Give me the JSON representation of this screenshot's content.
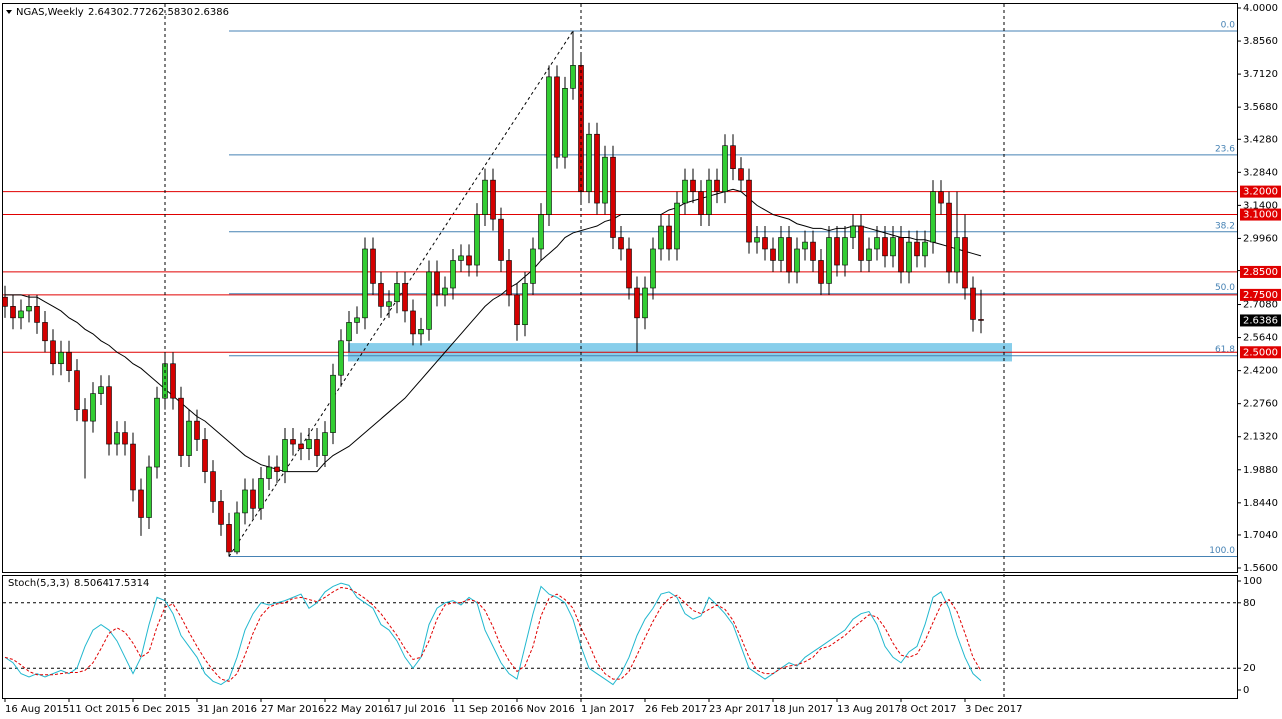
{
  "chart_data": [
    {
      "type": "candlestick",
      "title": "NGAS,Weekly",
      "header_values": [
        "2.6430",
        "2.7726",
        "2.5830",
        "2.6386"
      ],
      "categories": [
        "16 Aug 2015",
        null,
        null,
        null,
        null,
        null,
        null,
        null,
        "11 Oct 2015",
        null,
        null,
        null,
        null,
        null,
        null,
        null,
        "6 Dec 2015",
        null,
        null,
        null,
        null,
        null,
        null,
        null,
        "31 Jan 2016",
        null,
        null,
        null,
        null,
        null,
        null,
        null,
        "27 Mar 2016",
        null,
        null,
        null,
        null,
        null,
        null,
        null,
        "22 May 2016",
        null,
        null,
        null,
        null,
        null,
        null,
        null,
        "17 Jul 2016",
        null,
        null,
        null,
        null,
        null,
        null,
        null,
        "11 Sep 2016",
        null,
        null,
        null,
        null,
        null,
        null,
        null,
        "6 Nov 2016",
        null,
        null,
        null,
        null,
        null,
        null,
        null,
        "1 Jan 2017",
        null,
        null,
        null,
        null,
        null,
        null,
        null,
        "26 Feb 2017",
        null,
        null,
        null,
        null,
        null,
        null,
        null,
        "23 Apr 2017",
        null,
        null,
        null,
        null,
        null,
        null,
        null,
        "18 Jun 2017",
        null,
        null,
        null,
        null,
        null,
        null,
        null,
        "13 Aug 2017",
        null,
        null,
        null,
        null,
        null,
        null,
        null,
        "8 Oct 2017",
        null,
        null,
        null,
        null,
        null,
        null,
        null,
        "3 Dec 2017",
        null,
        null
      ],
      "open": [
        2.74,
        2.7,
        2.65,
        2.68,
        2.7,
        2.63,
        2.55,
        2.45,
        2.5,
        2.42,
        2.25,
        2.2,
        2.32,
        2.35,
        2.1,
        2.15,
        2.1,
        1.9,
        1.78,
        2.0,
        2.3,
        2.45,
        2.3,
        2.05,
        2.2,
        2.12,
        1.98,
        1.85,
        1.75,
        1.63,
        1.8,
        1.9,
        1.82,
        1.95,
        2.0,
        1.98,
        2.12,
        2.1,
        2.08,
        2.12,
        2.05,
        2.15,
        2.4,
        2.55,
        2.63,
        2.65,
        2.95,
        2.8,
        2.7,
        2.72,
        2.8,
        2.68,
        2.58,
        2.6,
        2.85,
        2.75,
        2.78,
        2.9,
        2.92,
        2.88,
        3.1,
        3.25,
        3.08,
        2.9,
        2.75,
        2.62,
        2.8,
        2.95,
        3.1,
        3.7,
        3.35,
        3.65,
        3.75,
        3.2,
        3.45,
        3.15,
        3.35,
        3.0,
        2.95,
        2.78,
        2.65,
        2.78,
        2.95,
        3.05,
        2.95,
        3.15,
        3.25,
        3.2,
        3.1,
        3.25,
        3.2,
        3.4,
        3.3,
        3.25,
        2.98,
        3.0,
        2.95,
        2.9,
        3.0,
        2.85,
        2.95,
        2.98,
        2.9,
        2.8,
        3.0,
        2.88,
        3.0,
        3.05,
        2.9,
        2.95,
        3.0,
        2.92,
        3.0,
        2.85,
        2.98,
        2.92,
        2.98,
        3.2,
        3.15,
        2.85,
        3.0,
        2.78,
        2.643
      ],
      "high": [
        2.79,
        2.75,
        2.73,
        2.75,
        2.75,
        2.68,
        2.6,
        2.55,
        2.55,
        2.47,
        2.3,
        2.37,
        2.4,
        2.4,
        2.2,
        2.2,
        2.15,
        1.95,
        2.05,
        2.35,
        2.5,
        2.5,
        2.35,
        2.25,
        2.25,
        2.17,
        2.03,
        1.9,
        1.8,
        1.85,
        1.95,
        1.95,
        2.0,
        2.05,
        2.05,
        2.17,
        2.17,
        2.15,
        2.17,
        2.17,
        2.2,
        2.45,
        2.6,
        2.68,
        2.7,
        3.0,
        3.0,
        2.85,
        2.77,
        2.85,
        2.85,
        2.73,
        2.65,
        2.9,
        2.9,
        2.83,
        2.95,
        2.97,
        2.97,
        3.15,
        3.3,
        3.3,
        3.13,
        2.95,
        2.8,
        2.85,
        3.0,
        3.15,
        3.75,
        3.75,
        3.7,
        3.9,
        3.8,
        3.5,
        3.5,
        3.4,
        3.4,
        3.05,
        3.0,
        2.83,
        2.83,
        3.0,
        3.1,
        3.1,
        3.2,
        3.3,
        3.3,
        3.25,
        3.3,
        3.3,
        3.45,
        3.45,
        3.35,
        3.3,
        3.05,
        3.05,
        3.0,
        3.05,
        3.05,
        3.0,
        3.03,
        3.03,
        2.95,
        3.05,
        3.05,
        3.05,
        3.1,
        3.1,
        3.0,
        3.05,
        3.05,
        3.05,
        3.05,
        3.03,
        3.03,
        3.03,
        3.25,
        3.25,
        3.2,
        3.2,
        3.1,
        2.83,
        2.7726
      ],
      "low": [
        2.65,
        2.6,
        2.6,
        2.63,
        2.58,
        2.5,
        2.4,
        2.4,
        2.37,
        2.2,
        1.95,
        2.15,
        2.27,
        2.05,
        2.05,
        2.05,
        1.85,
        1.7,
        1.73,
        1.95,
        2.25,
        2.25,
        2.0,
        2.0,
        2.07,
        1.93,
        1.8,
        1.7,
        1.61,
        1.62,
        1.75,
        1.77,
        1.77,
        1.9,
        1.93,
        1.93,
        2.05,
        2.03,
        2.03,
        2.0,
        2.0,
        2.1,
        2.35,
        2.5,
        2.58,
        2.6,
        2.75,
        2.65,
        2.65,
        2.67,
        2.63,
        2.53,
        2.53,
        2.55,
        2.7,
        2.7,
        2.73,
        2.85,
        2.83,
        2.83,
        3.05,
        3.03,
        2.85,
        2.7,
        2.55,
        2.57,
        2.75,
        2.9,
        3.05,
        3.3,
        3.3,
        3.6,
        3.15,
        3.15,
        3.1,
        3.1,
        2.95,
        2.9,
        2.73,
        2.5,
        2.6,
        2.73,
        2.9,
        2.9,
        2.9,
        3.1,
        3.15,
        3.05,
        3.05,
        3.15,
        3.15,
        3.25,
        3.2,
        2.93,
        2.93,
        2.9,
        2.85,
        2.85,
        2.8,
        2.8,
        2.9,
        2.85,
        2.75,
        2.75,
        2.83,
        2.83,
        2.95,
        2.85,
        2.85,
        2.9,
        2.87,
        2.87,
        2.8,
        2.8,
        2.87,
        2.87,
        2.93,
        3.1,
        2.8,
        2.8,
        2.73,
        2.59,
        2.583
      ],
      "close": [
        2.7,
        2.65,
        2.68,
        2.7,
        2.63,
        2.55,
        2.45,
        2.5,
        2.42,
        2.25,
        2.2,
        2.32,
        2.35,
        2.1,
        2.15,
        2.1,
        1.9,
        1.78,
        2.0,
        2.3,
        2.45,
        2.3,
        2.05,
        2.2,
        2.12,
        1.98,
        1.85,
        1.75,
        1.63,
        1.8,
        1.9,
        1.82,
        1.95,
        2.0,
        1.98,
        2.12,
        2.1,
        2.08,
        2.12,
        2.05,
        2.15,
        2.4,
        2.55,
        2.63,
        2.65,
        2.95,
        2.8,
        2.7,
        2.72,
        2.8,
        2.68,
        2.58,
        2.6,
        2.85,
        2.75,
        2.78,
        2.9,
        2.92,
        2.88,
        3.1,
        3.25,
        3.08,
        2.9,
        2.75,
        2.62,
        2.8,
        2.95,
        3.1,
        3.7,
        3.35,
        3.65,
        3.75,
        3.2,
        3.45,
        3.15,
        3.35,
        3.0,
        2.95,
        2.78,
        2.65,
        2.78,
        2.95,
        3.05,
        2.95,
        3.15,
        3.25,
        3.2,
        3.1,
        3.25,
        3.2,
        3.4,
        3.3,
        3.25,
        2.98,
        3.0,
        2.95,
        2.9,
        3.0,
        2.85,
        2.95,
        2.98,
        2.9,
        2.8,
        3.0,
        2.88,
        3.0,
        3.05,
        2.9,
        2.95,
        3.0,
        2.92,
        3.0,
        2.85,
        2.98,
        2.92,
        2.98,
        3.2,
        3.15,
        2.85,
        3.0,
        2.78,
        2.643,
        2.6386
      ],
      "up_color": "#32cd32",
      "down_color": "#d40000",
      "overlay": {
        "color": "#000000",
        "values": [
          2.75,
          2.75,
          2.75,
          2.74,
          2.74,
          2.72,
          2.7,
          2.68,
          2.65,
          2.63,
          2.6,
          2.58,
          2.55,
          2.53,
          2.5,
          2.48,
          2.45,
          2.43,
          2.4,
          2.37,
          2.34,
          2.31,
          2.28,
          2.25,
          2.22,
          2.2,
          2.17,
          2.14,
          2.11,
          2.08,
          2.05,
          2.03,
          2.01,
          2.0,
          1.99,
          1.98,
          1.98,
          1.98,
          1.98,
          1.98,
          2.02,
          2.05,
          2.07,
          2.09,
          2.12,
          2.15,
          2.18,
          2.21,
          2.24,
          2.27,
          2.3,
          2.34,
          2.38,
          2.42,
          2.46,
          2.5,
          2.54,
          2.58,
          2.62,
          2.66,
          2.7,
          2.73,
          2.75,
          2.78,
          2.8,
          2.83,
          2.86,
          2.9,
          2.93,
          2.96,
          3.0,
          3.02,
          3.03,
          3.04,
          3.05,
          3.07,
          3.08,
          3.1,
          3.1,
          3.1,
          3.1,
          3.1,
          3.1,
          3.12,
          3.13,
          3.15,
          3.16,
          3.17,
          3.18,
          3.19,
          3.2,
          3.21,
          3.2,
          3.17,
          3.14,
          3.12,
          3.1,
          3.09,
          3.08,
          3.06,
          3.05,
          3.04,
          3.04,
          3.03,
          3.04,
          3.04,
          3.05,
          3.05,
          3.04,
          3.03,
          3.02,
          3.01,
          3.0,
          3.0,
          2.99,
          2.99,
          2.98,
          2.97,
          2.96,
          2.95,
          2.94,
          2.93,
          2.92
        ]
      },
      "ylim": [
        1.56,
        4.0
      ],
      "yticks": [
        {
          "value": 4.0,
          "label": "4.0000"
        },
        {
          "value": 3.856,
          "label": "3.8560"
        },
        {
          "value": 3.712,
          "label": "3.7120"
        },
        {
          "value": 3.568,
          "label": "3.5680"
        },
        {
          "value": 3.428,
          "label": "3.4280"
        },
        {
          "value": 3.284,
          "label": "3.2840"
        },
        {
          "value": 3.14,
          "label": "3.1400"
        },
        {
          "value": 2.996,
          "label": "2.9960"
        },
        {
          "value": 2.856,
          "label": "2.8560"
        },
        {
          "value": 2.708,
          "label": "2.7080"
        },
        {
          "value": 2.564,
          "label": "2.5640"
        },
        {
          "value": 2.42,
          "label": "2.4200"
        },
        {
          "value": 2.276,
          "label": "2.2760"
        },
        {
          "value": 2.132,
          "label": "2.1320"
        },
        {
          "value": 1.988,
          "label": "1.9880"
        },
        {
          "value": 1.844,
          "label": "1.8440"
        },
        {
          "value": 1.704,
          "label": "1.7040"
        },
        {
          "value": 1.56,
          "label": "1.5600"
        }
      ],
      "levels": [
        {
          "value": 3.2,
          "label": "3.2000"
        },
        {
          "value": 3.1,
          "label": "3.1000"
        },
        {
          "value": 2.85,
          "label": "2.8500"
        },
        {
          "value": 2.75,
          "label": "2.7500"
        },
        {
          "value": 2.5,
          "label": "2.5000"
        }
      ],
      "level_color": "#e00000",
      "fib_levels": [
        {
          "value": 3.9,
          "label": "0.0"
        },
        {
          "value": 3.36,
          "label": "23.6"
        },
        {
          "value": 3.025,
          "label": "38.2"
        },
        {
          "value": 2.755,
          "label": "50.0"
        },
        {
          "value": 2.485,
          "label": "61.8"
        },
        {
          "value": 1.61,
          "label": "100.0"
        }
      ],
      "fib_color": "#4682b4",
      "zone": [
        2.46,
        2.54
      ],
      "zone_color": "#87ceeb"
    },
    {
      "type": "line",
      "title": "Stoch(5,3,3)",
      "series": [
        {
          "color": "#22b8cf",
          "values": [
            30,
            25,
            15,
            12,
            15,
            12,
            15,
            18,
            15,
            20,
            40,
            55,
            60,
            55,
            45,
            30,
            15,
            30,
            60,
            85,
            82,
            70,
            50,
            40,
            30,
            15,
            8,
            5,
            10,
            30,
            55,
            70,
            80,
            78,
            80,
            82,
            85,
            88,
            75,
            80,
            90,
            95,
            98,
            96,
            85,
            80,
            75,
            60,
            55,
            45,
            30,
            20,
            30,
            60,
            75,
            80,
            82,
            78,
            85,
            80,
            55,
            40,
            25,
            15,
            10,
            40,
            70,
            95,
            88,
            85,
            80,
            65,
            40,
            20,
            15,
            10,
            5,
            15,
            30,
            50,
            65,
            75,
            88,
            90,
            85,
            70,
            65,
            68,
            85,
            78,
            70,
            60,
            40,
            20,
            15,
            10,
            15,
            20,
            25,
            22,
            30,
            35,
            40,
            45,
            50,
            55,
            65,
            70,
            72,
            60,
            40,
            30,
            25,
            35,
            40,
            60,
            85,
            90,
            75,
            50,
            30,
            15,
            8.5064
          ]
        },
        {
          "color": "#e00000",
          "dashed": true,
          "values": [
            30,
            28,
            23,
            17,
            14,
            14,
            14,
            15,
            16,
            16,
            18,
            25,
            38,
            52,
            57,
            53,
            43,
            30,
            35,
            58,
            76,
            79,
            67,
            53,
            40,
            28,
            18,
            10,
            8,
            15,
            32,
            52,
            68,
            76,
            79,
            80,
            84,
            85,
            83,
            81,
            85,
            90,
            94,
            93,
            89,
            84,
            78,
            70,
            60,
            50,
            38,
            28,
            30,
            45,
            65,
            78,
            80,
            80,
            83,
            81,
            73,
            58,
            40,
            27,
            17,
            22,
            40,
            68,
            84,
            88,
            83,
            75,
            57,
            42,
            25,
            15,
            10,
            10,
            17,
            32,
            48,
            63,
            76,
            84,
            87,
            80,
            73,
            70,
            74,
            78,
            74,
            64,
            48,
            30,
            18,
            15,
            15,
            20,
            22,
            23,
            26,
            30,
            38,
            40,
            45,
            50,
            57,
            63,
            69,
            67,
            57,
            43,
            32,
            30,
            33,
            45,
            62,
            78,
            83,
            72,
            52,
            30,
            17.5314
          ]
        }
      ],
      "ylim": [
        0,
        100
      ],
      "yticks": [
        0,
        20,
        80,
        100
      ],
      "levels": [
        20,
        80
      ]
    }
  ]
}
